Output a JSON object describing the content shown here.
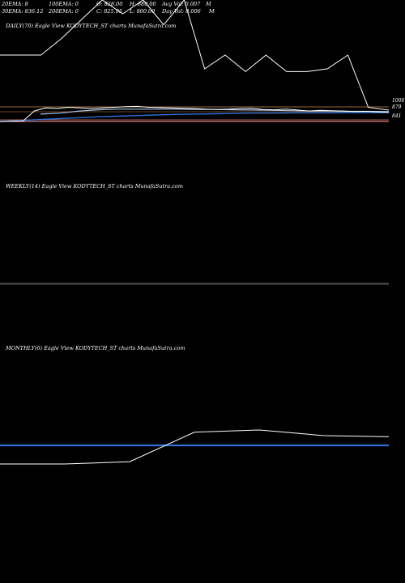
{
  "header": {
    "ema20": "20EMA: 8",
    "ema100": "100EMA: 0",
    "open": "O: 828.00",
    "high": "H: 880.00",
    "avg_vol": "Avg Vol: 0.007",
    "ema30": "30EMA: 836.12",
    "ema200": "200EMA: 0",
    "close": "C: 825.95",
    "low": "L: 800.00",
    "day_vol": "Day Vol: 0.006",
    "cut_m1": "M",
    "cut_m2": "M"
  },
  "colors": {
    "background": "#000000",
    "price_line": "#ffffff",
    "ema_blue": "#2f6fd6",
    "ema_light": "#a9c3ea",
    "level_red": "#d97a7a",
    "level_orange": "#c88a4a",
    "separator": "#777777"
  },
  "chart_data": [
    {
      "panel": "daily",
      "type": "line",
      "title": "DAILY(70) Eagle   View  KODYTECH_ST charts MunafaSutra.com",
      "price_ticks": [
        "1000",
        "879",
        "841"
      ],
      "series": [
        {
          "key": "volume_line",
          "values": [
            60,
            60,
            60,
            72,
            86,
            100,
            90,
            100,
            82,
            100,
            50,
            60,
            48,
            60,
            48,
            48,
            50,
            60,
            22,
            20
          ]
        },
        {
          "key": "price",
          "values": [
            826,
            827,
            827,
            860,
            870,
            868,
            872,
            870,
            868,
            870,
            872,
            874,
            875,
            872,
            871,
            870,
            869,
            868,
            866,
            865,
            866,
            868,
            869,
            865,
            864,
            866,
            863,
            860,
            862,
            861,
            860,
            858,
            859,
            857,
            856
          ]
        },
        {
          "key": "ema_slow",
          "values": [
            826,
            829,
            832,
            835,
            838,
            841,
            843,
            845,
            847,
            849,
            850,
            851,
            852,
            853,
            853,
            854,
            854,
            854,
            855,
            855,
            855
          ]
        },
        {
          "key": "ema_fast",
          "values": [
            850,
            853,
            860,
            864,
            866,
            866,
            866,
            866,
            865,
            865,
            864,
            863,
            862,
            861,
            860,
            860,
            859,
            859,
            858
          ]
        }
      ]
    },
    {
      "panel": "weekly",
      "type": "line",
      "title": "WEEKLY(14) Eagle   View  KODYTECH_ST charts MunafaSutra.com"
    },
    {
      "panel": "monthly",
      "type": "line",
      "title": "MONTHLY(6) Eagle   View  KODYTECH_ST charts MunafaSutra.com",
      "series": [
        {
          "key": "price",
          "values": [
            780,
            780,
            790,
            920,
            930,
            905,
            900
          ]
        },
        {
          "key": "ema",
          "values": [
            860,
            860,
            860,
            860,
            860,
            860,
            860
          ]
        }
      ]
    }
  ]
}
